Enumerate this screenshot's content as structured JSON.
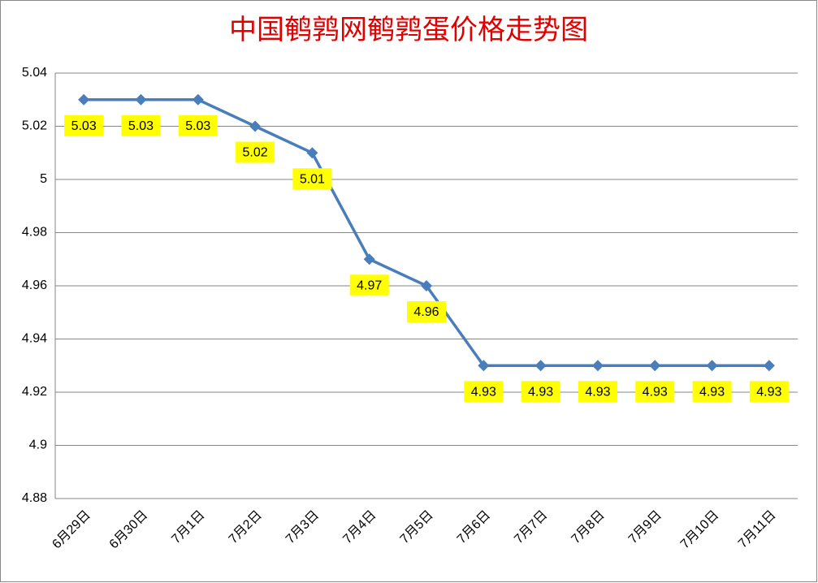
{
  "chart_data": {
    "type": "line",
    "title": "中国鹌鹑网鹌鹑蛋价格走势图",
    "categories": [
      "6月29日",
      "6月30日",
      "7月1日",
      "7月2日",
      "7月3日",
      "7月4日",
      "7月5日",
      "7月6日",
      "7月7日",
      "7月8日",
      "7月9日",
      "7月10日",
      "7月11日"
    ],
    "values": [
      5.03,
      5.03,
      5.03,
      5.02,
      5.01,
      4.97,
      4.96,
      4.93,
      4.93,
      4.93,
      4.93,
      4.93,
      4.93
    ],
    "color": "#4a7ebb",
    "label_color": "#ffff00",
    "ylim": [
      4.88,
      5.04
    ],
    "yticks": [
      4.88,
      4.9,
      4.92,
      4.94,
      4.96,
      4.98,
      5,
      5.02,
      5.04
    ],
    "grid": true
  }
}
